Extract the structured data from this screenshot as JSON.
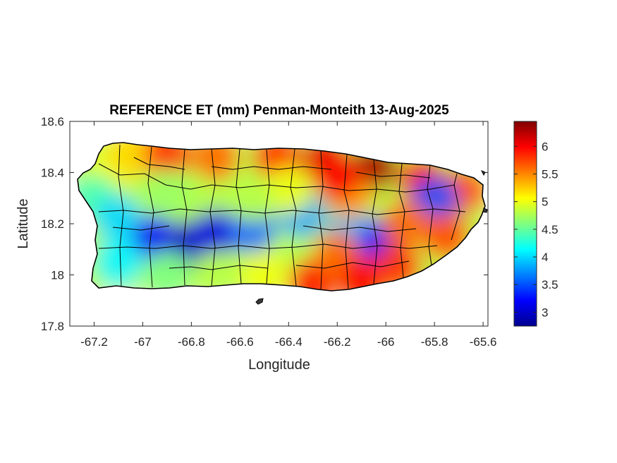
{
  "title": "REFERENCE ET (mm) Penman-Monteith 13-Aug-2025",
  "chart_data": {
    "type": "heatmap",
    "title": "REFERENCE ET (mm) Penman-Monteith 13-Aug-2025",
    "xlabel": "Longitude",
    "ylabel": "Latitude",
    "xlim": [
      -67.3,
      -65.58
    ],
    "ylim": [
      17.8,
      18.6
    ],
    "x_ticks": [
      -67.2,
      -67,
      -66.8,
      -66.6,
      -66.4,
      -66.2,
      -66,
      -65.8,
      -65.6
    ],
    "x_tick_labels": [
      "-67.2",
      "-67",
      "-66.8",
      "-66.6",
      "-66.4",
      "-66.2",
      "-66",
      "-65.8",
      "-65.6"
    ],
    "y_ticks": [
      17.8,
      18,
      18.2,
      18.4,
      18.6
    ],
    "y_tick_labels": [
      "17.8",
      "18",
      "18.2",
      "18.4",
      "18.6"
    ],
    "colormap": "jet",
    "clim": [
      2.75,
      6.45
    ],
    "colorbar_ticks": [
      3,
      3.5,
      4,
      4.5,
      5,
      5.5,
      6
    ],
    "colorbar_tick_labels": [
      "3",
      "3.5",
      "4",
      "4.5",
      "5",
      "5.5",
      "6"
    ],
    "grid": false,
    "outline_color": "#000000",
    "field_points": [
      {
        "lon": -67.15,
        "lat": 18.4,
        "value": 5.0
      },
      {
        "lon": -67.05,
        "lat": 18.47,
        "value": 5.2
      },
      {
        "lon": -66.9,
        "lat": 18.47,
        "value": 5.8
      },
      {
        "lon": -66.7,
        "lat": 18.46,
        "value": 5.6
      },
      {
        "lon": -66.45,
        "lat": 18.46,
        "value": 5.8
      },
      {
        "lon": -66.25,
        "lat": 18.45,
        "value": 6.1
      },
      {
        "lon": -66.05,
        "lat": 18.42,
        "value": 6.3
      },
      {
        "lon": -65.85,
        "lat": 18.37,
        "value": 6.0
      },
      {
        "lon": -65.68,
        "lat": 18.33,
        "value": 5.7
      },
      {
        "lon": -67.2,
        "lat": 18.3,
        "value": 4.4
      },
      {
        "lon": -67.1,
        "lat": 18.22,
        "value": 4.0
      },
      {
        "lon": -66.95,
        "lat": 18.14,
        "value": 3.2
      },
      {
        "lon": -66.8,
        "lat": 18.12,
        "value": 3.0
      },
      {
        "lon": -66.7,
        "lat": 18.16,
        "value": 3.1
      },
      {
        "lon": -66.55,
        "lat": 18.18,
        "value": 3.6
      },
      {
        "lon": -66.35,
        "lat": 18.24,
        "value": 3.8
      },
      {
        "lon": -66.15,
        "lat": 18.17,
        "value": 3.9
      },
      {
        "lon": -66.02,
        "lat": 18.13,
        "value": 3.3
      },
      {
        "lon": -65.8,
        "lat": 18.29,
        "value": 3.5
      },
      {
        "lon": -65.92,
        "lat": 18.2,
        "value": 5.6
      },
      {
        "lon": -65.75,
        "lat": 18.15,
        "value": 5.7
      },
      {
        "lon": -67.1,
        "lat": 18.05,
        "value": 4.1
      },
      {
        "lon": -66.9,
        "lat": 18.0,
        "value": 4.6
      },
      {
        "lon": -66.7,
        "lat": 18.0,
        "value": 4.8
      },
      {
        "lon": -66.5,
        "lat": 18.0,
        "value": 5.0
      },
      {
        "lon": -66.3,
        "lat": 17.97,
        "value": 5.9
      },
      {
        "lon": -66.2,
        "lat": 18.08,
        "value": 5.6
      },
      {
        "lon": -66.1,
        "lat": 17.98,
        "value": 6.0
      },
      {
        "lon": -65.95,
        "lat": 18.03,
        "value": 5.8
      },
      {
        "lon": -66.4,
        "lat": 18.33,
        "value": 5.0
      },
      {
        "lon": -66.9,
        "lat": 18.32,
        "value": 4.7
      },
      {
        "lon": -66.55,
        "lat": 18.3,
        "value": 4.8
      },
      {
        "lon": -66.15,
        "lat": 18.31,
        "value": 5.4
      },
      {
        "lon": -66.2,
        "lat": 18.38,
        "value": 6.0
      }
    ]
  }
}
